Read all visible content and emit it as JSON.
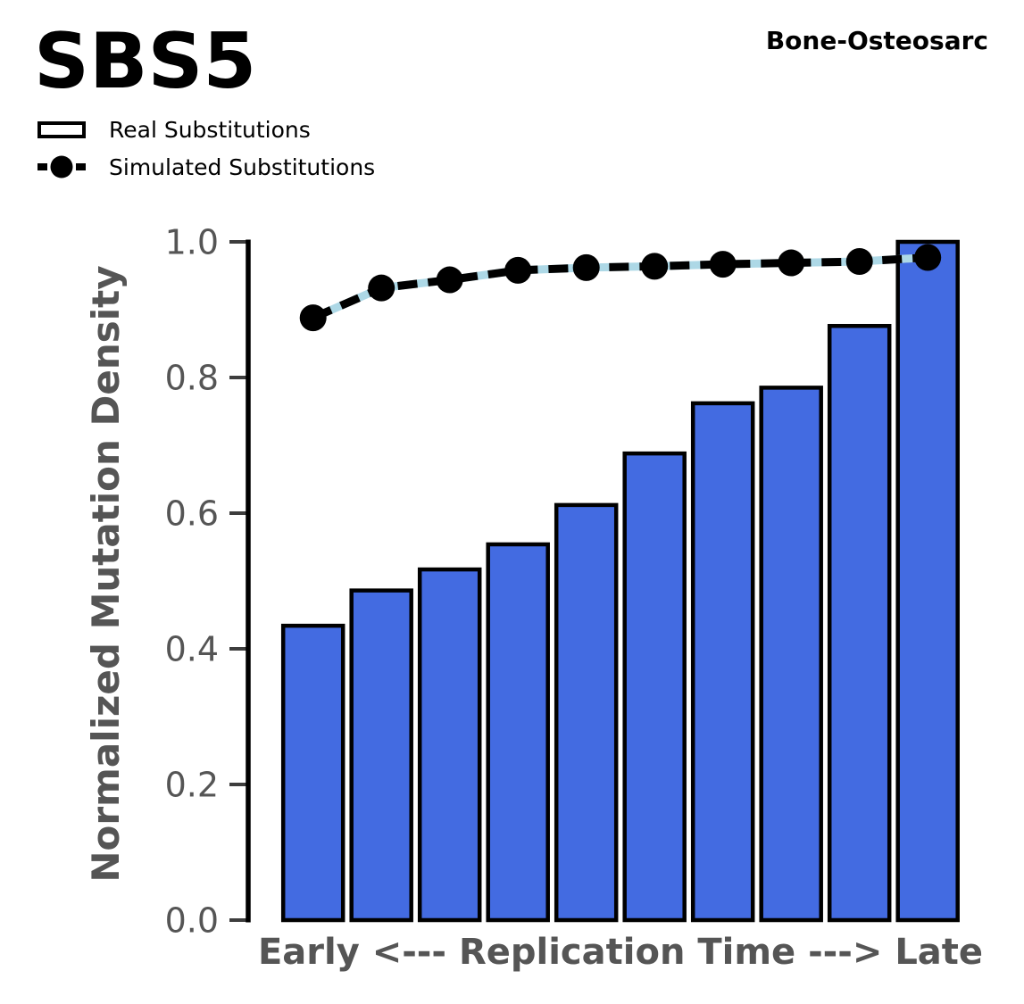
{
  "figure": {
    "title": "SBS5",
    "context_label": "Bone-Osteosarc"
  },
  "legend": {
    "items": [
      {
        "label": "Real Substitutions",
        "marker": "blue-bar-swatch"
      },
      {
        "label": "Simulated Substitutions",
        "marker": "black-dot-dashed-line"
      }
    ]
  },
  "chart_data": {
    "type": "bar",
    "n_bins": 10,
    "series": [
      {
        "name": "Real Substitutions",
        "type": "bar",
        "color": "#436BE1",
        "edge_color": "#000000",
        "values": [
          0.434,
          0.486,
          0.517,
          0.554,
          0.612,
          0.688,
          0.762,
          0.785,
          0.876,
          1.0
        ]
      },
      {
        "name": "Simulated Substitutions",
        "type": "line",
        "color": "#000000",
        "underlay_color": "#ADD8E6",
        "marker": "circle",
        "values": [
          0.888,
          0.932,
          0.944,
          0.958,
          0.962,
          0.964,
          0.967,
          0.969,
          0.971,
          0.977
        ]
      }
    ],
    "title": "SBS5",
    "xlabel": "Early <--- Replication Time ---> Late",
    "ylabel": "Normalized Mutation Density",
    "ylim": [
      0.0,
      1.0
    ],
    "yticks": [
      0.0,
      0.2,
      0.4,
      0.6,
      0.8,
      1.0
    ],
    "ytick_labels": [
      "0.0",
      "0.2",
      "0.4",
      "0.6",
      "0.8",
      "1.0"
    ],
    "xtick_labels": [],
    "grid": false,
    "legend_position": "upper left"
  },
  "colors": {
    "bar_fill": "#436BE1",
    "bar_edge": "#000000",
    "line": "#000000",
    "line_underlay": "#ADD8E6",
    "axis_text": "#555555",
    "spine": "#000000",
    "background": "#ffffff"
  }
}
